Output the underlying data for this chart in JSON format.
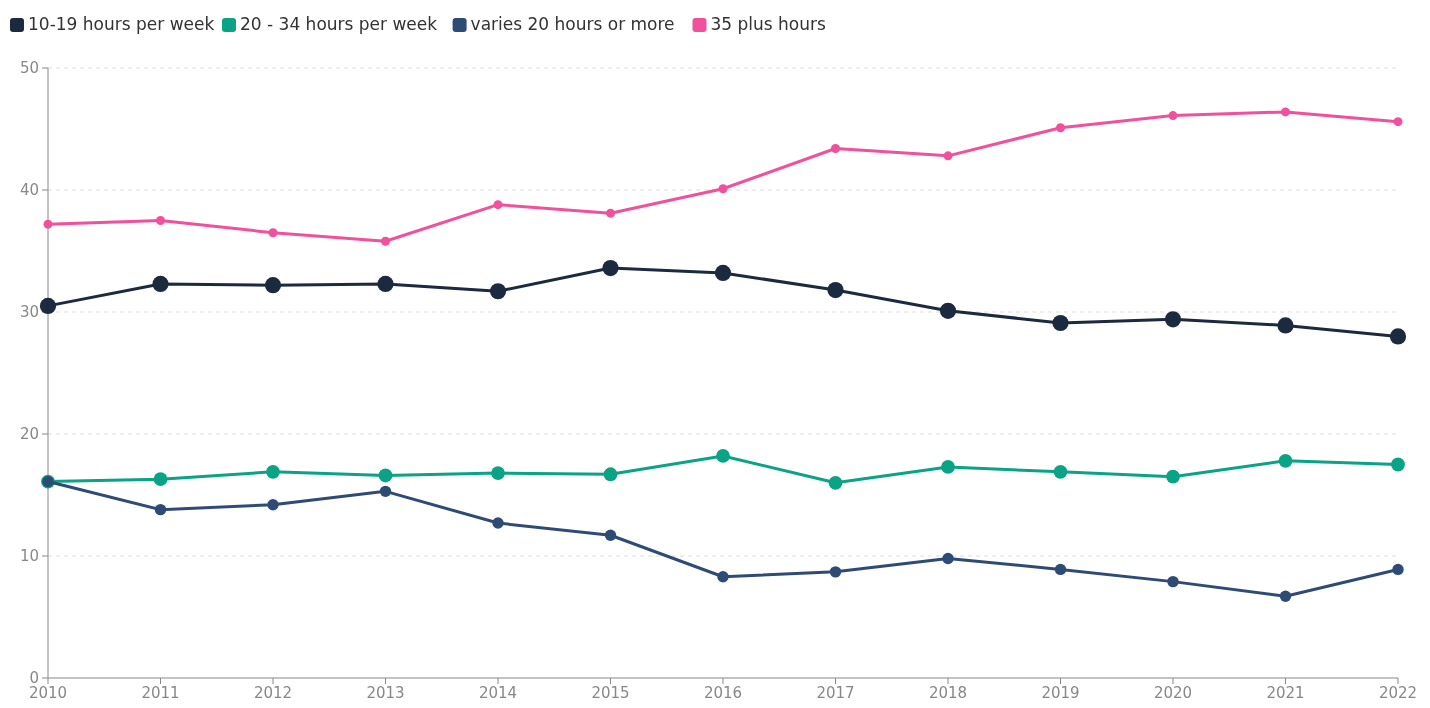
{
  "chart_data": {
    "type": "line",
    "categories": [
      "2010",
      "2011",
      "2012",
      "2013",
      "2014",
      "2015",
      "2016",
      "2017",
      "2018",
      "2019",
      "2020",
      "2021",
      "2022"
    ],
    "series": [
      {
        "name": "10-19 hours per week",
        "color": "#1b2a3f",
        "values": [
          30.5,
          32.3,
          32.2,
          32.3,
          31.7,
          33.6,
          33.2,
          31.8,
          30.1,
          29.1,
          29.4,
          28.9,
          28.0
        ]
      },
      {
        "name": "20 - 34 hours per week",
        "color": "#0aa386",
        "values": [
          16.1,
          16.3,
          16.9,
          16.6,
          16.8,
          16.7,
          18.2,
          16.0,
          17.3,
          16.9,
          16.5,
          17.8,
          17.5
        ]
      },
      {
        "name": "varies 20 hours or more",
        "color": "#2e4b76",
        "values": [
          16.1,
          13.8,
          14.2,
          15.3,
          12.7,
          11.7,
          8.3,
          8.7,
          9.8,
          8.9,
          7.9,
          6.7,
          8.9
        ]
      },
      {
        "name": "35 plus hours",
        "color": "#f0509c",
        "values": [
          37.2,
          37.5,
          36.5,
          35.8,
          38.8,
          38.1,
          40.1,
          43.4,
          42.8,
          45.1,
          46.1,
          46.4,
          45.6
        ]
      }
    ],
    "ylim": [
      0,
      50
    ],
    "yticks": [
      0,
      10,
      20,
      30,
      40,
      50
    ],
    "grid": "y",
    "legend": "top left",
    "marker": "circle",
    "line_style": "solid"
  }
}
